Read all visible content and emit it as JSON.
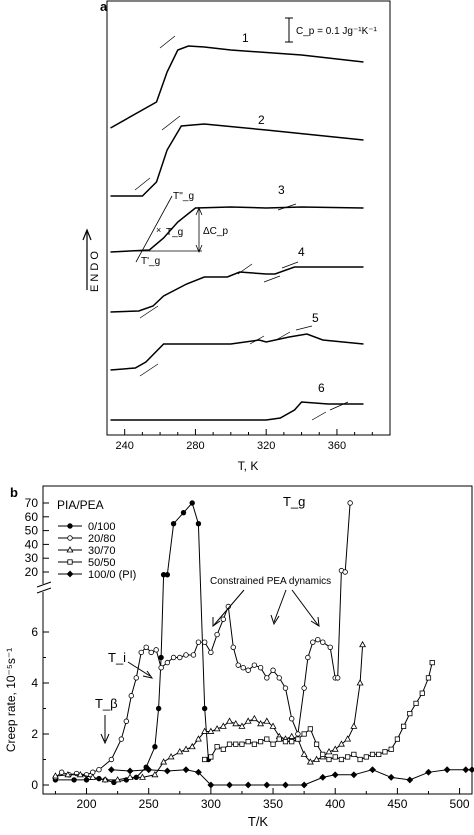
{
  "chart_data": [
    {
      "panel_label": "a",
      "type": "line",
      "xlabel": "T, K",
      "ylabel": "E N D O",
      "xlim": [
        230,
        390
      ],
      "xticks": [
        240,
        280,
        320,
        360
      ],
      "scale_bar": "C_p = 0.1 Jg⁻¹K⁻¹",
      "annotations": {
        "tg": "T_g",
        "tg_onset": "T'_g",
        "tg_end": "T''_g",
        "delta_cp": "ΔC_p"
      },
      "series": [
        {
          "name": "1",
          "x": [
            232,
            258,
            264,
            270,
            276,
            285,
            300,
            340,
            375
          ],
          "y": [
            128,
            102,
            72,
            50,
            46,
            47,
            50,
            55,
            62
          ]
        },
        {
          "name": "2",
          "x": [
            232,
            250,
            258,
            264,
            272,
            285,
            320,
            375
          ],
          "y": [
            196,
            196,
            182,
            150,
            126,
            124,
            130,
            140
          ]
        },
        {
          "name": "3",
          "x": [
            232,
            254,
            262,
            270,
            280,
            300,
            320,
            340,
            375
          ],
          "y": [
            252,
            250,
            238,
            222,
            208,
            207,
            208,
            207,
            208
          ]
        },
        {
          "name": "4",
          "x": [
            232,
            248,
            256,
            262,
            275,
            285,
            298,
            305,
            320,
            325,
            336,
            340,
            375
          ],
          "y": [
            312,
            311,
            306,
            296,
            284,
            277,
            277,
            272,
            274,
            274,
            267,
            267,
            267
          ]
        },
        {
          "name": "5",
          "x": [
            232,
            246,
            252,
            262,
            275,
            300,
            316,
            320,
            333,
            343,
            352,
            375
          ],
          "y": [
            370,
            368,
            362,
            344,
            344,
            344,
            340,
            342,
            337,
            334,
            340,
            344
          ]
        },
        {
          "name": "6",
          "x": [
            232,
            320,
            328,
            336,
            340,
            355,
            375
          ],
          "y": [
            420,
            420,
            418,
            410,
            402,
            404,
            404
          ]
        }
      ]
    },
    {
      "panel_label": "b",
      "type": "line",
      "xlabel": "T/K",
      "ylabel": "Creep rate, 10⁻⁵s⁻¹",
      "legend_title": "PIA/PEA",
      "legend_position": "top-left",
      "xlim": [
        165,
        510
      ],
      "xticks": [
        200,
        250,
        300,
        350,
        400,
        450,
        500
      ],
      "ylim_lower": [
        0,
        7
      ],
      "yticks_lower": [
        0,
        2,
        4,
        6
      ],
      "ylim_upper": [
        15,
        75
      ],
      "yticks_upper": [
        20,
        30,
        40,
        50,
        60,
        70
      ],
      "annotations": {
        "tg": "T_g",
        "ti": "T_i",
        "tb": "T_β",
        "constrained": "Constrained PEA dynamics"
      },
      "series": [
        {
          "name": "0/100",
          "marker": "filled-circle",
          "x": [
            175,
            190,
            200,
            210,
            215,
            222,
            232,
            240,
            248,
            255,
            258,
            260,
            262,
            265,
            270,
            278,
            285,
            290,
            295,
            298
          ],
          "y": [
            0.2,
            0.2,
            0.2,
            0.25,
            0.2,
            0.1,
            0.2,
            0.3,
            0.7,
            1.5,
            3.0,
            5.0,
            18,
            18,
            55,
            63,
            70,
            55,
            3.0,
            1.0
          ]
        },
        {
          "name": "20/80",
          "marker": "open-circle",
          "x": [
            175,
            180,
            186,
            192,
            200,
            205,
            210,
            220,
            228,
            232,
            236,
            240,
            244,
            248,
            252,
            256,
            260,
            265,
            270,
            275,
            280,
            286,
            290,
            295,
            300,
            305,
            310,
            314,
            318,
            322,
            326,
            330,
            335,
            340,
            345,
            350,
            355,
            360,
            365,
            370,
            375,
            378,
            382,
            386,
            390,
            396,
            400,
            402,
            405,
            408,
            412
          ],
          "y": [
            0.3,
            0.5,
            0.4,
            0.45,
            0.4,
            0.5,
            0.6,
            1.0,
            1.8,
            2.5,
            3.5,
            4.2,
            5.2,
            5.4,
            5.2,
            5.3,
            4.6,
            4.8,
            5.0,
            5.0,
            5.1,
            5.1,
            5.6,
            5.6,
            5.2,
            5.9,
            6.5,
            7.0,
            5.4,
            4.7,
            4.6,
            4.5,
            4.7,
            4.6,
            4.2,
            4.5,
            4.2,
            3.8,
            2.6,
            2.0,
            3.8,
            5.0,
            5.6,
            5.7,
            5.6,
            5.4,
            4.2,
            4.2,
            21,
            20,
            70
          ]
        },
        {
          "name": "30/70",
          "marker": "open-triangle",
          "x": [
            175,
            185,
            195,
            205,
            215,
            225,
            235,
            245,
            255,
            262,
            268,
            275,
            280,
            285,
            290,
            295,
            300,
            305,
            310,
            315,
            320,
            325,
            330,
            335,
            340,
            345,
            350,
            355,
            360,
            365,
            370,
            375,
            380,
            385,
            390,
            395,
            400,
            405,
            410,
            415,
            420,
            422
          ],
          "y": [
            0.35,
            0.4,
            0.4,
            0.3,
            0.2,
            0.2,
            0.3,
            0.3,
            0.4,
            0.9,
            1.1,
            1.3,
            1.4,
            1.5,
            1.8,
            2.1,
            2.1,
            2.2,
            2.3,
            2.5,
            2.4,
            2.3,
            2.5,
            2.6,
            2.4,
            2.5,
            2.3,
            1.9,
            1.8,
            1.9,
            1.8,
            1.2,
            0.9,
            1.0,
            1.1,
            1.3,
            1.4,
            1.6,
            1.8,
            2.3,
            4.0,
            5.5
          ]
        },
        {
          "name": "50/50",
          "marker": "open-square",
          "x": [
            295,
            300,
            305,
            310,
            315,
            320,
            325,
            330,
            335,
            340,
            345,
            350,
            355,
            360,
            365,
            370,
            375,
            380,
            385,
            390,
            395,
            400,
            405,
            410,
            415,
            420,
            425,
            430,
            435,
            440,
            445,
            450,
            455,
            460,
            465,
            470,
            475,
            478
          ],
          "y": [
            1.0,
            1.1,
            1.5,
            1.4,
            1.6,
            1.6,
            1.6,
            1.7,
            1.6,
            1.7,
            1.8,
            1.6,
            1.8,
            1.7,
            1.7,
            1.8,
            2.0,
            2.2,
            1.6,
            1.2,
            1.0,
            1.1,
            1.0,
            1.1,
            1.2,
            1.0,
            1.1,
            1.2,
            1.2,
            1.3,
            1.4,
            1.8,
            2.3,
            2.8,
            3.2,
            3.6,
            4.2,
            4.8
          ]
        },
        {
          "name": "100/0 (PI)",
          "marker": "filled-diamond",
          "x": [
            220,
            235,
            250,
            265,
            280,
            290,
            300,
            315,
            330,
            345,
            360,
            375,
            390,
            400,
            415,
            430,
            445,
            460,
            475,
            490,
            505,
            510
          ],
          "y": [
            0.6,
            0.55,
            0.6,
            0.55,
            0.6,
            0.5,
            0.0,
            0.0,
            0.0,
            0.0,
            0.0,
            0.0,
            0.3,
            0.4,
            0.4,
            0.6,
            0.3,
            0.2,
            0.5,
            0.6,
            0.6,
            0.6
          ]
        }
      ]
    }
  ]
}
